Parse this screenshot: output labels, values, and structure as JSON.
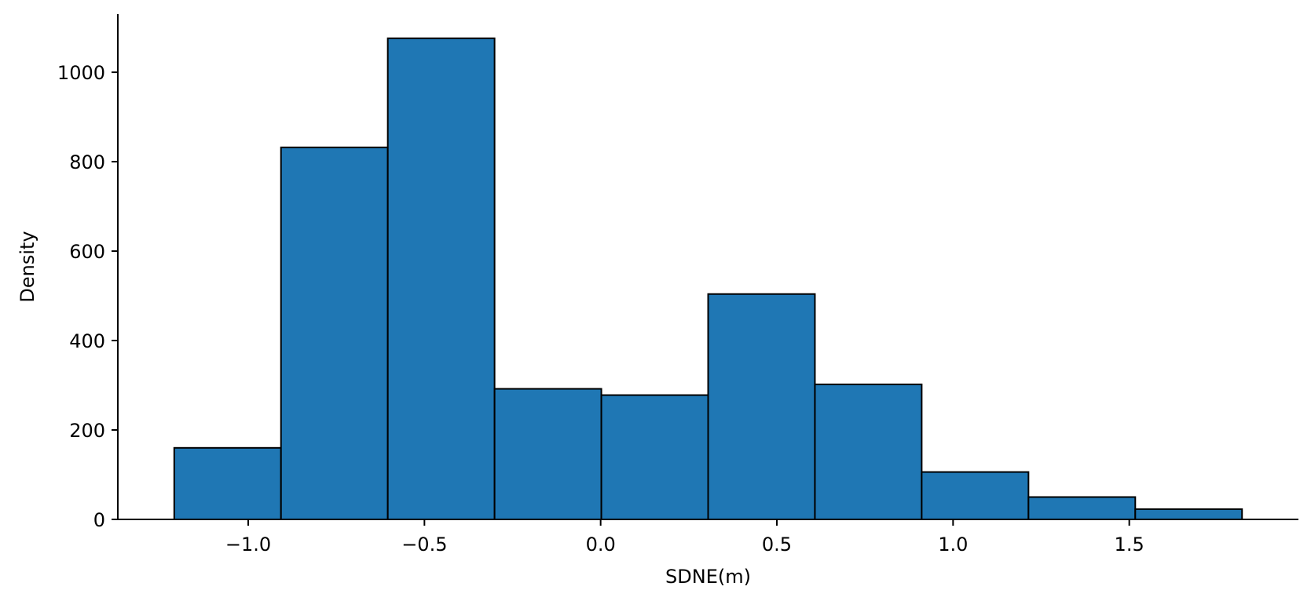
{
  "chart_data": {
    "type": "bar",
    "subtype": "histogram",
    "title": "",
    "xlabel": "SDNE(m)",
    "ylabel": "Density",
    "bin_edges": [
      -1.21,
      -0.907,
      -0.604,
      -0.301,
      0.002,
      0.305,
      0.608,
      0.911,
      1.214,
      1.517,
      1.82
    ],
    "values": [
      160,
      832,
      1076,
      292,
      278,
      504,
      302,
      106,
      50,
      23
    ],
    "xlim": [
      -1.37,
      1.98
    ],
    "ylim": [
      0,
      1130
    ],
    "xticks": [
      -1.0,
      -0.5,
      0.0,
      0.5,
      1.0,
      1.5
    ],
    "xtick_labels": [
      "−1.0",
      "−0.5",
      "0.0",
      "0.5",
      "1.0",
      "1.5"
    ],
    "yticks": [
      0,
      200,
      400,
      600,
      800,
      1000
    ],
    "ytick_labels": [
      "0",
      "200",
      "400",
      "600",
      "800",
      "1000"
    ],
    "bar_color": "#1f77b4",
    "edge_color": "#000000",
    "grid": false,
    "spines": [
      "left",
      "bottom"
    ]
  }
}
